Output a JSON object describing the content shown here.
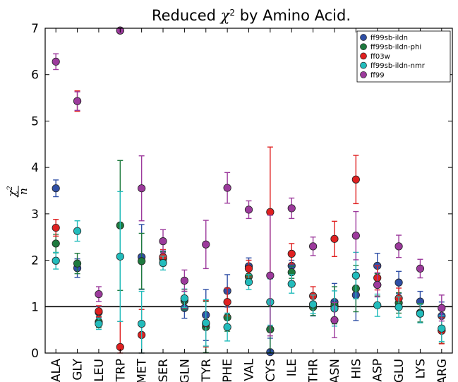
{
  "chart_data": {
    "type": "scatter",
    "title_prefix": "Reduced ",
    "title_symbol": "χ",
    "title_sup": "2",
    "title_suffix": " by Amino Acid.",
    "ylabel_num": "χ",
    "ylabel_sup": "2",
    "ylabel_den": "n",
    "ylim": [
      0,
      7
    ],
    "yticks": [
      "0",
      "1",
      "2",
      "3",
      "4",
      "5",
      "6",
      "7"
    ],
    "reference_line": 1,
    "legend_position": "top-right",
    "categories": [
      "ALA",
      "GLY",
      "LEU",
      "TRP",
      "MET",
      "SER",
      "GLN",
      "TYR",
      "PHE",
      "VAL",
      "CYS",
      "ILE",
      "THR",
      "ASN",
      "HIS",
      "ASP",
      "GLU",
      "LYS",
      "ARG"
    ],
    "series": [
      {
        "name": "ff99sb-ildn",
        "color": "#2f4fa6",
        "values": [
          3.55,
          1.83,
          0.88,
          6.95,
          2.07,
          2.05,
          0.97,
          0.82,
          1.34,
          1.87,
          0.02,
          1.88,
          1.0,
          1.1,
          1.25,
          1.88,
          1.52,
          1.11,
          0.8
        ],
        "errors": [
          0.18,
          0.2,
          0.12,
          0.02,
          0.7,
          0.15,
          0.22,
          0.55,
          0.35,
          0.18,
          0.3,
          0.12,
          0.2,
          0.4,
          0.55,
          0.27,
          0.24,
          0.22,
          0.3
        ]
      },
      {
        "name": "ff99sb-ildn-phi",
        "color": "#1e7a3e",
        "values": [
          2.36,
          1.93,
          0.67,
          2.75,
          1.98,
          2.03,
          1.13,
          0.56,
          0.77,
          1.65,
          0.51,
          1.74,
          0.99,
          1.03,
          1.39,
          1.47,
          1.08,
          0.87,
          0.49
        ],
        "errors": [
          0.2,
          0.22,
          0.12,
          1.4,
          0.6,
          0.15,
          0.2,
          0.55,
          0.3,
          0.16,
          0.5,
          0.13,
          0.18,
          0.4,
          0.5,
          0.24,
          0.22,
          0.2,
          0.28
        ]
      },
      {
        "name": "ff03w",
        "color": "#e02020",
        "values": [
          2.7,
          5.43,
          0.9,
          0.13,
          0.39,
          2.07,
          1.17,
          0.63,
          1.1,
          1.82,
          3.04,
          2.14,
          1.23,
          2.46,
          3.74,
          1.62,
          1.18,
          0.85,
          0.48
        ],
        "errors": [
          0.18,
          0.22,
          0.12,
          0.55,
          0.55,
          0.16,
          0.2,
          0.5,
          0.3,
          0.18,
          1.4,
          0.22,
          0.2,
          0.38,
          0.52,
          0.26,
          0.22,
          0.2,
          0.28
        ]
      },
      {
        "name": "ff99sb-ildn-nmr",
        "color": "#22bcbc",
        "values": [
          1.99,
          2.63,
          0.63,
          2.08,
          0.63,
          1.94,
          1.18,
          0.65,
          0.56,
          1.53,
          1.1,
          1.49,
          1.05,
          0.96,
          1.67,
          1.03,
          0.99,
          0.85,
          0.53
        ],
        "errors": [
          0.18,
          0.22,
          0.12,
          1.4,
          0.7,
          0.15,
          0.2,
          0.5,
          0.3,
          0.16,
          0.5,
          0.2,
          0.2,
          0.38,
          0.5,
          0.24,
          0.22,
          0.2,
          0.28
        ]
      },
      {
        "name": "ff99",
        "color": "#9c3a9c",
        "values": [
          6.28,
          5.43,
          1.27,
          6.95,
          3.55,
          2.41,
          1.56,
          2.34,
          3.56,
          3.09,
          1.67,
          3.12,
          2.3,
          0.71,
          2.53,
          1.47,
          2.3,
          1.82,
          0.97
        ],
        "errors": [
          0.17,
          0.2,
          0.16,
          0.02,
          0.7,
          0.25,
          0.23,
          0.52,
          0.33,
          0.19,
          1.3,
          0.22,
          0.2,
          0.38,
          0.52,
          0.26,
          0.24,
          0.2,
          0.28
        ]
      }
    ]
  }
}
